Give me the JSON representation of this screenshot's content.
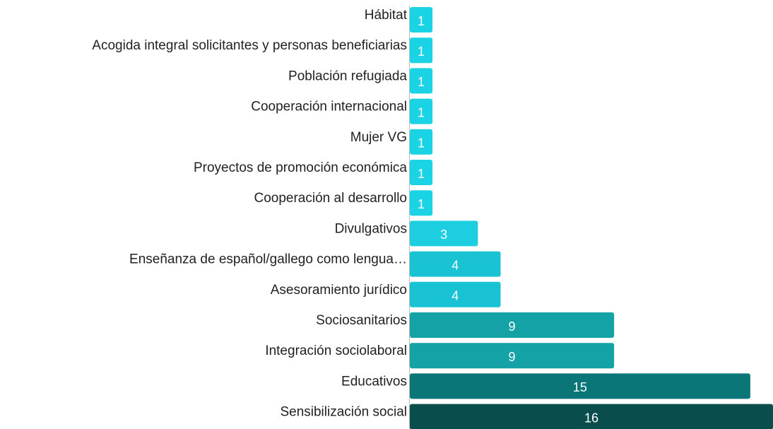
{
  "chart_data": {
    "type": "barh",
    "categories": [
      "Hábitat",
      "Acogida integral solicitantes y personas beneficiarias",
      "Población refugiada",
      "Cooperación internacional",
      "Mujer VG",
      "Proyectos de promoción económica",
      "Cooperación al desarrollo",
      "Divulgativos",
      "Enseñanza de español/gallego como lengua…",
      "Asesoramiento jurídico",
      "Sociosanitarios",
      "Integración sociolaboral",
      "Educativos",
      "Sensibilización social"
    ],
    "values": [
      1,
      1,
      1,
      1,
      1,
      1,
      1,
      3,
      4,
      4,
      9,
      9,
      15,
      16
    ],
    "colors": [
      "#1ad4e6",
      "#1ad4e6",
      "#1ad4e6",
      "#1ad4e6",
      "#1ad4e6",
      "#1ad4e6",
      "#1ad4e6",
      "#1ccedf",
      "#19c3d3",
      "#19c3d3",
      "#14a2a6",
      "#14a2a6",
      "#0a7677",
      "#0a4d4d"
    ],
    "xlim": [
      0,
      16
    ]
  }
}
